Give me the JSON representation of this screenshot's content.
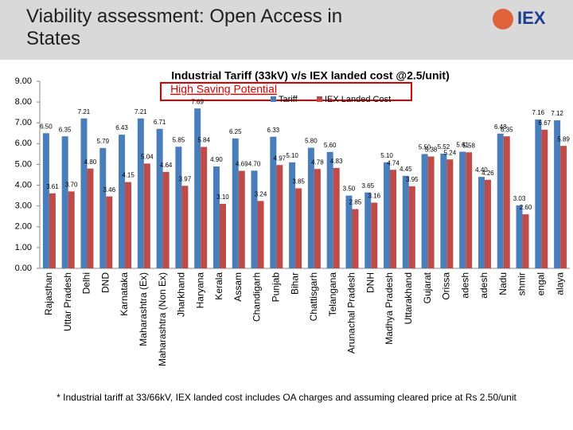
{
  "header": {
    "title": "Viability assessment: Open Access in States",
    "logo": "IEX"
  },
  "chart_data": {
    "type": "bar",
    "title": "Industrial Tariff (33kV) v/s IEX landed cost @2.5/unit)",
    "annotation": "High Saving Potential",
    "categories": [
      "Rajasthan",
      "Uttar Pradesh",
      "Delhi",
      "DND",
      "Karnataka",
      "Maharashtra (Ex)",
      "Maharashtra (Non Ex)",
      "Jharkhand",
      "Haryana",
      "Kerala",
      "Assam",
      "Chandigarh",
      "Punjab",
      "Bihar",
      "Chattisgarh",
      "Telangana",
      "Arunachal Pradesh",
      "DNH",
      "Madhya Pradesh",
      "Uttarakhand",
      "Gujarat",
      "Orissa",
      "adesh",
      "adesh",
      "Nadu",
      "shmir",
      "engal",
      "alaya"
    ],
    "series": [
      {
        "name": "Tariff",
        "color": "#4a7ebb",
        "values": [
          6.5,
          6.35,
          7.21,
          5.79,
          6.43,
          7.21,
          6.71,
          5.85,
          7.69,
          4.9,
          6.25,
          4.7,
          6.33,
          5.1,
          5.8,
          5.6,
          3.5,
          3.65,
          5.1,
          4.45,
          5.5,
          5.52,
          5.61,
          4.4,
          6.48,
          3.03,
          7.16,
          7.12
        ],
        "value_labels": [
          "6.50",
          "6.35",
          "7.21",
          "5.79",
          "6.43",
          "7.21",
          "6.71",
          "5.85",
          "7.69",
          "4.90",
          "6.25",
          "4.70",
          "6.33",
          "5.10",
          "5.80",
          "5.60",
          "3.50",
          "3.65",
          "5.10",
          "4.45",
          "5.50",
          "5.52",
          "5.61",
          "4.40",
          "6.48",
          "3.03",
          "7.16",
          "7.12"
        ]
      },
      {
        "name": "IEX Landed Cost",
        "color": "#be4b48",
        "values": [
          3.61,
          3.7,
          4.8,
          3.46,
          4.15,
          5.04,
          4.64,
          3.97,
          5.84,
          3.1,
          4.69,
          3.24,
          4.97,
          3.85,
          4.78,
          4.83,
          2.85,
          3.16,
          4.74,
          3.95,
          5.38,
          5.24,
          5.58,
          4.26,
          6.35,
          2.6,
          6.67,
          5.89
        ],
        "value_labels": [
          "3.61",
          "3.70",
          "4.80",
          "3.46",
          "4.15",
          "5.04",
          "4.64",
          "3.97",
          "5.84",
          "3.10",
          "4.69",
          "3.24",
          "4.97",
          "3.85",
          "4.78",
          "4.83",
          "2.85",
          "3.16",
          "4.74",
          "3.95",
          "5.38",
          "5.24",
          "5.58",
          "4.26",
          "6.35",
          "2.60",
          "6.67",
          "5.89"
        ]
      }
    ],
    "ylim": [
      0,
      9
    ],
    "yticks": [
      {
        "value": 0,
        "label": "0.00"
      },
      {
        "value": 1,
        "label": "1.00"
      },
      {
        "value": 2,
        "label": "2.00"
      },
      {
        "value": 3,
        "label": "3.00"
      },
      {
        "value": 4,
        "label": "4.00"
      },
      {
        "value": 5,
        "label": "5.00"
      },
      {
        "value": 6,
        "label": "6.00"
      },
      {
        "value": 7,
        "label": "7.00"
      },
      {
        "value": 8,
        "label": "8.00"
      },
      {
        "value": 9,
        "label": "9.00"
      }
    ],
    "legend": "top-right",
    "footnote": "* Industrial tariff at 33/66kV, IEX landed cost includes OA charges and assuming cleared price at Rs 2.50/unit"
  }
}
